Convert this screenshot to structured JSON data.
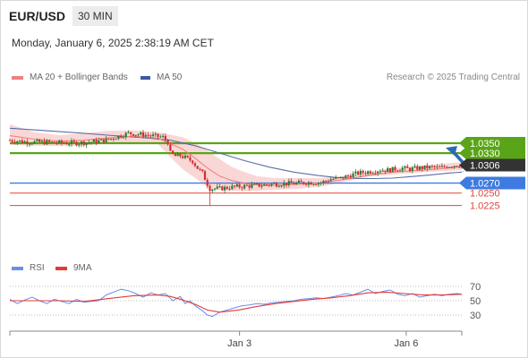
{
  "header": {
    "pair": "EUR/USD",
    "timeframe": "30 MIN",
    "datetime": "Monday, January 6, 2025 2:38:19 AM CET"
  },
  "legend": {
    "ma20_label": "MA 20 + Bollinger Bands",
    "ma50_label": "MA 50",
    "credit": "Research © 2025 Trading Central",
    "rsi_label": "RSI",
    "rsi_ma_label": "9MA"
  },
  "colors": {
    "bull_candle": "#2e7d32",
    "bear_candle": "#d32f2f",
    "bollinger_fill": "#f8c9c9",
    "ma20": "#f08080",
    "ma50": "#5b6fa8",
    "resistance": "#5aa517",
    "support_major": "#3d7be0",
    "support_minor": "#e0453a",
    "last_price": "#333333",
    "rsi": "#6a8ee8",
    "rsi_ma": "#e53935",
    "arrow": "#2a6ab8"
  },
  "chart_data": [
    {
      "type": "candlestick",
      "title": "EUR/USD",
      "timeframe": "30 MIN",
      "x_ticks": [
        "Jan 3",
        "Jan 6"
      ],
      "ylim": [
        1.0214,
        1.0405
      ],
      "last_price": 1.0306,
      "levels": [
        {
          "value": 1.035,
          "label": "1.0350",
          "kind": "resistance"
        },
        {
          "value": 1.033,
          "label": "1.0330",
          "kind": "resistance"
        },
        {
          "value": 1.027,
          "label": "1.0270",
          "kind": "support_major"
        },
        {
          "value": 1.025,
          "label": "1.0250",
          "kind": "support_minor"
        },
        {
          "value": 1.0225,
          "label": "1.0225",
          "kind": "support_minor"
        }
      ],
      "forecast": {
        "direction": "up",
        "from": 1.031,
        "to": 1.0348
      },
      "close_path": [
        [
          0,
          1.0356
        ],
        [
          12,
          1.0353
        ],
        [
          26,
          1.0352
        ],
        [
          40,
          1.0351
        ],
        [
          52,
          1.035
        ],
        [
          64,
          1.0352
        ],
        [
          78,
          1.0356
        ],
        [
          88,
          1.0364
        ],
        [
          96,
          1.037
        ],
        [
          104,
          1.0368
        ],
        [
          112,
          1.0366
        ],
        [
          118,
          1.0364
        ],
        [
          124,
          1.0362
        ],
        [
          128,
          1.0352
        ],
        [
          130,
          1.033
        ],
        [
          134,
          1.0324
        ],
        [
          138,
          1.0325
        ],
        [
          142,
          1.0321
        ],
        [
          146,
          1.0316
        ],
        [
          148,
          1.0314
        ],
        [
          152,
          1.03
        ],
        [
          156,
          1.029
        ],
        [
          160,
          1.0268
        ],
        [
          162,
          1.0259
        ],
        [
          170,
          1.0259
        ],
        [
          180,
          1.0262
        ],
        [
          192,
          1.0264
        ],
        [
          204,
          1.0266
        ],
        [
          212,
          1.0268
        ],
        [
          224,
          1.0269
        ],
        [
          240,
          1.0271
        ],
        [
          252,
          1.0271
        ],
        [
          260,
          1.0278
        ],
        [
          268,
          1.028
        ],
        [
          276,
          1.0286
        ],
        [
          282,
          1.029
        ],
        [
          288,
          1.0292
        ],
        [
          294,
          1.0294
        ],
        [
          300,
          1.0296
        ],
        [
          306,
          1.0296
        ],
        [
          312,
          1.0298
        ],
        [
          318,
          1.03
        ],
        [
          324,
          1.0298
        ],
        [
          330,
          1.03
        ],
        [
          336,
          1.0301
        ],
        [
          342,
          1.0302
        ],
        [
          348,
          1.03
        ],
        [
          354,
          1.0304
        ],
        [
          360,
          1.0306
        ],
        [
          366,
          1.0306
        ]
      ],
      "bands": {
        "upper": [
          [
            0,
            1.0388
          ],
          [
            20,
            1.0372
          ],
          [
            40,
            1.0366
          ],
          [
            60,
            1.037
          ],
          [
            80,
            1.0375
          ],
          [
            100,
            1.0376
          ],
          [
            120,
            1.0372
          ],
          [
            140,
            1.0362
          ],
          [
            150,
            1.035
          ],
          [
            160,
            1.0335
          ],
          [
            170,
            1.0318
          ],
          [
            180,
            1.0302
          ],
          [
            190,
            1.0292
          ],
          [
            200,
            1.0284
          ],
          [
            215,
            1.028
          ],
          [
            230,
            1.028
          ],
          [
            250,
            1.028
          ],
          [
            270,
            1.0283
          ],
          [
            290,
            1.0292
          ],
          [
            310,
            1.03
          ],
          [
            330,
            1.0303
          ],
          [
            350,
            1.0309
          ],
          [
            366,
            1.0312
          ]
        ],
        "lower": [
          [
            0,
            1.0347
          ],
          [
            20,
            1.0345
          ],
          [
            40,
            1.0344
          ],
          [
            60,
            1.0345
          ],
          [
            80,
            1.035
          ],
          [
            100,
            1.0352
          ],
          [
            120,
            1.0348
          ],
          [
            130,
            1.0322
          ],
          [
            140,
            1.0298
          ],
          [
            150,
            1.028
          ],
          [
            160,
            1.0262
          ],
          [
            170,
            1.0256
          ],
          [
            180,
            1.0254
          ],
          [
            195,
            1.0254
          ],
          [
            210,
            1.0256
          ],
          [
            230,
            1.0258
          ],
          [
            250,
            1.0262
          ],
          [
            270,
            1.0272
          ],
          [
            290,
            1.0283
          ],
          [
            310,
            1.0287
          ],
          [
            330,
            1.0291
          ],
          [
            350,
            1.0294
          ],
          [
            366,
            1.0296
          ]
        ]
      },
      "ma20": [
        [
          0,
          1.0365
        ],
        [
          20,
          1.0358
        ],
        [
          40,
          1.0354
        ],
        [
          60,
          1.0356
        ],
        [
          80,
          1.0361
        ],
        [
          100,
          1.0364
        ],
        [
          120,
          1.036
        ],
        [
          140,
          1.0338
        ],
        [
          150,
          1.032
        ],
        [
          160,
          1.03
        ],
        [
          170,
          1.0284
        ],
        [
          180,
          1.0275
        ],
        [
          195,
          1.0267
        ],
        [
          210,
          1.0265
        ],
        [
          230,
          1.0267
        ],
        [
          250,
          1.027
        ],
        [
          270,
          1.0277
        ],
        [
          290,
          1.0285
        ],
        [
          310,
          1.0292
        ],
        [
          330,
          1.0295
        ],
        [
          350,
          1.0299
        ],
        [
          366,
          1.0303
        ]
      ],
      "ma50": [
        [
          0,
          1.038
        ],
        [
          30,
          1.0375
        ],
        [
          60,
          1.037
        ],
        [
          90,
          1.0364
        ],
        [
          110,
          1.0361
        ],
        [
          130,
          1.0356
        ],
        [
          150,
          1.0345
        ],
        [
          170,
          1.033
        ],
        [
          190,
          1.0315
        ],
        [
          210,
          1.0302
        ],
        [
          230,
          1.0292
        ],
        [
          250,
          1.0285
        ],
        [
          265,
          1.0281
        ],
        [
          280,
          1.0279
        ],
        [
          295,
          1.0279
        ],
        [
          310,
          1.028
        ],
        [
          325,
          1.0283
        ],
        [
          340,
          1.0286
        ],
        [
          355,
          1.029
        ],
        [
          366,
          1.0292
        ]
      ]
    },
    {
      "type": "line",
      "title": "RSI",
      "y_ticks": [
        30,
        50,
        70
      ],
      "ylim": [
        20,
        80
      ],
      "series": [
        {
          "name": "RSI",
          "values": [
            [
              0,
              52
            ],
            [
              6,
              46
            ],
            [
              12,
              51
            ],
            [
              18,
              55
            ],
            [
              24,
              50
            ],
            [
              30,
              46
            ],
            [
              36,
              52
            ],
            [
              42,
              49
            ],
            [
              48,
              46
            ],
            [
              54,
              52
            ],
            [
              60,
              48
            ],
            [
              66,
              49
            ],
            [
              72,
              50
            ],
            [
              78,
              58
            ],
            [
              84,
              62
            ],
            [
              90,
              66
            ],
            [
              96,
              64
            ],
            [
              102,
              60
            ],
            [
              108,
              55
            ],
            [
              114,
              61
            ],
            [
              120,
              58
            ],
            [
              126,
              60
            ],
            [
              132,
              50
            ],
            [
              138,
              56
            ],
            [
              142,
              46
            ],
            [
              146,
              50
            ],
            [
              150,
              43
            ],
            [
              156,
              36
            ],
            [
              160,
              30
            ],
            [
              164,
              28
            ],
            [
              170,
              34
            ],
            [
              176,
              37
            ],
            [
              182,
              40
            ],
            [
              188,
              43
            ],
            [
              194,
              44
            ],
            [
              200,
              46
            ],
            [
              206,
              45
            ],
            [
              212,
              47
            ],
            [
              218,
              48
            ],
            [
              224,
              49
            ],
            [
              230,
              50
            ],
            [
              236,
              52
            ],
            [
              242,
              53
            ],
            [
              248,
              54
            ],
            [
              254,
              53
            ],
            [
              260,
              55
            ],
            [
              266,
              57
            ],
            [
              272,
              60
            ],
            [
              278,
              58
            ],
            [
              284,
              62
            ],
            [
              290,
              66
            ],
            [
              296,
              60
            ],
            [
              302,
              63
            ],
            [
              308,
              65
            ],
            [
              314,
              59
            ],
            [
              320,
              57
            ],
            [
              326,
              60
            ],
            [
              332,
              55
            ],
            [
              338,
              57
            ],
            [
              344,
              59
            ],
            [
              350,
              57
            ],
            [
              356,
              59
            ],
            [
              362,
              60
            ],
            [
              366,
              59
            ]
          ]
        },
        {
          "name": "9MA",
          "values": [
            [
              0,
              50
            ],
            [
              20,
              50
            ],
            [
              40,
              50
            ],
            [
              60,
              49
            ],
            [
              80,
              53
            ],
            [
              100,
              57
            ],
            [
              120,
              58
            ],
            [
              130,
              56
            ],
            [
              140,
              51
            ],
            [
              150,
              45
            ],
            [
              160,
              37
            ],
            [
              170,
              34
            ],
            [
              185,
              37
            ],
            [
              200,
              42
            ],
            [
              215,
              46
            ],
            [
              230,
              49
            ],
            [
              245,
              52
            ],
            [
              260,
              54
            ],
            [
              275,
              57
            ],
            [
              290,
              61
            ],
            [
              305,
              62
            ],
            [
              320,
              60
            ],
            [
              335,
              58
            ],
            [
              350,
              58
            ],
            [
              366,
              59
            ]
          ]
        }
      ]
    }
  ]
}
